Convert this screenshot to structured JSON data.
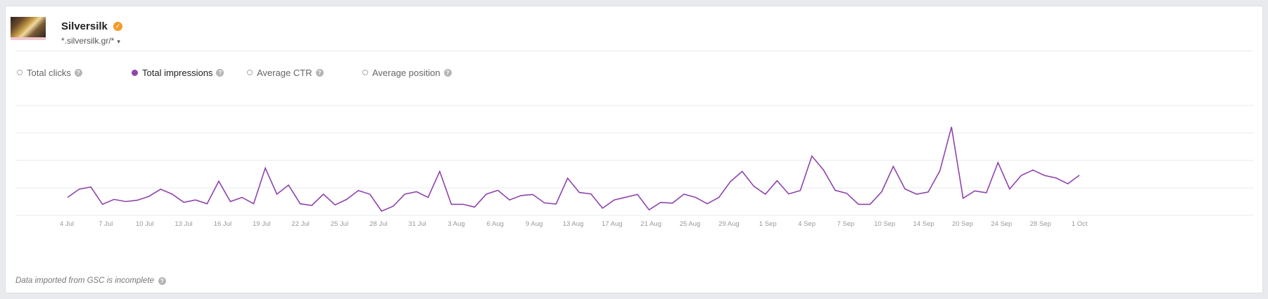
{
  "site": {
    "name": "Silversilk",
    "verified_icon": "verified-check-icon",
    "domain": "*.silversilk.gr/*",
    "domain_caret": "▾"
  },
  "metrics": [
    {
      "label": "Total clicks",
      "selected": false
    },
    {
      "label": "Total impressions",
      "selected": true
    },
    {
      "label": "Average CTR",
      "selected": false
    },
    {
      "label": "Average position",
      "selected": false
    }
  ],
  "help_glyph": "?",
  "colors": {
    "series": "#8e44ad",
    "grid": "#e9ebee",
    "tick": "#999999"
  },
  "chart_data": {
    "type": "line",
    "x_ticks": [
      "4 Jul",
      "7 Jul",
      "10 Jul",
      "13 Jul",
      "16 Jul",
      "19 Jul",
      "22 Jul",
      "25 Jul",
      "28 Jul",
      "31 Jul",
      "3 Aug",
      "6 Aug",
      "9 Aug",
      "13 Aug",
      "17 Aug",
      "21 Aug",
      "25 Aug",
      "29 Aug",
      "1 Sep",
      "4 Sep",
      "7 Sep",
      "10 Sep",
      "14 Sep",
      "20 Sep",
      "24 Sep",
      "28 Sep",
      "1 Oct"
    ],
    "grid_lines": 4,
    "ylim": [
      0,
      4
    ],
    "series": [
      {
        "values": [
          0.65,
          0.95,
          1.03,
          0.4,
          0.58,
          0.5,
          0.55,
          0.69,
          0.95,
          0.77,
          0.47,
          0.56,
          0.42,
          1.24,
          0.5,
          0.65,
          0.42,
          1.72,
          0.77,
          1.1,
          0.42,
          0.36,
          0.77,
          0.38,
          0.58,
          0.9,
          0.77,
          0.15,
          0.33,
          0.77,
          0.86,
          0.65,
          1.6,
          0.4,
          0.4,
          0.3,
          0.77,
          0.91,
          0.56,
          0.72,
          0.76,
          0.45,
          0.41,
          1.35,
          0.83,
          0.78,
          0.26,
          0.56,
          0.66,
          0.76,
          0.2,
          0.47,
          0.44,
          0.77,
          0.65,
          0.42,
          0.65,
          1.23,
          1.6,
          1.06,
          0.77,
          1.26,
          0.78,
          0.9,
          2.16,
          1.65,
          0.91,
          0.8,
          0.4,
          0.4,
          0.86,
          1.78,
          0.96,
          0.77,
          0.85,
          1.62,
          3.22,
          0.62,
          0.89,
          0.82,
          1.92,
          0.96,
          1.45,
          1.65,
          1.45,
          1.36,
          1.15,
          1.46
        ]
      }
    ]
  },
  "footnote": "Data imported from GSC is incomplete"
}
